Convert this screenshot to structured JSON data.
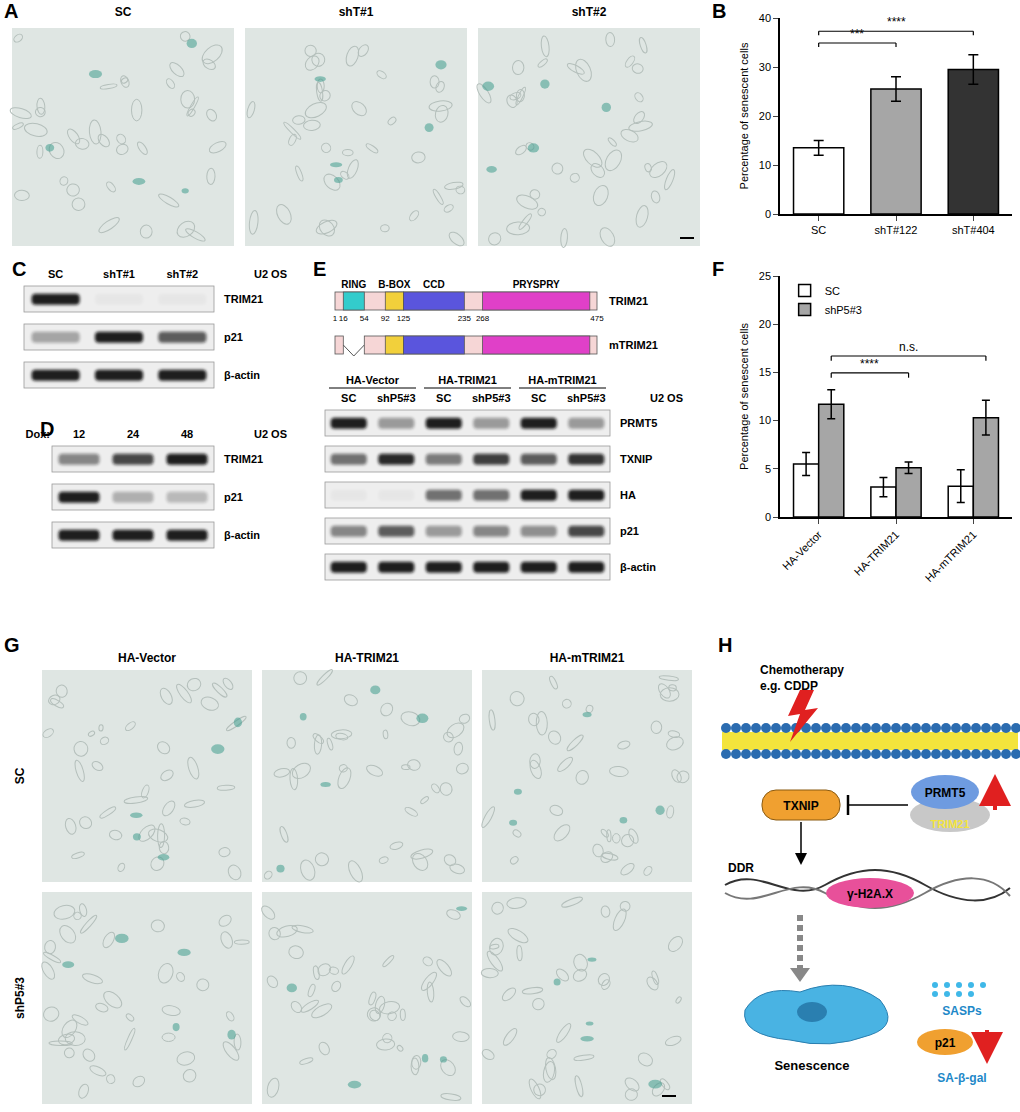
{
  "chart_data": [
    {
      "panel": "B",
      "type": "bar",
      "categories": [
        "SC",
        "shT#122",
        "shT#404"
      ],
      "values": [
        13.5,
        25.5,
        29.5
      ],
      "errors": [
        1.5,
        2.5,
        3.0
      ],
      "colors": [
        "#ffffff",
        "#a6a6a6",
        "#333333"
      ],
      "y_label": "Percentage of senescent cells",
      "ylim": [
        0,
        40
      ],
      "yticks": [
        0,
        10,
        20,
        30,
        40
      ],
      "grid": false,
      "significance": [
        {
          "from": "SC",
          "to": "shT#122",
          "label": "***"
        },
        {
          "from": "SC",
          "to": "shT#404",
          "label": "****"
        }
      ]
    },
    {
      "panel": "F",
      "type": "bar",
      "categories": [
        "HA-Vector",
        "HA-TRIM21",
        "HA-mTRIM21"
      ],
      "series": [
        {
          "name": "SC",
          "color": "#ffffff",
          "values": [
            5.5,
            3.1,
            3.2
          ],
          "errors": [
            1.2,
            1.0,
            1.7
          ]
        },
        {
          "name": "shP5#3",
          "color": "#a6a6a6",
          "values": [
            11.7,
            5.1,
            10.3
          ],
          "errors": [
            1.5,
            0.6,
            1.8
          ]
        }
      ],
      "y_label": "Percentage of senescent cells",
      "ylim": [
        0,
        25
      ],
      "yticks": [
        0,
        5,
        10,
        15,
        20,
        25
      ],
      "grid": false,
      "legend": "top-left",
      "significance": [
        {
          "series": "shP5#3",
          "from": "HA-Vector",
          "to": "HA-TRIM21",
          "label": "****"
        },
        {
          "series": "shP5#3",
          "from": "HA-Vector",
          "to": "HA-mTRIM21",
          "label": "n.s."
        }
      ]
    }
  ],
  "image_panels": [
    {
      "panel": "A",
      "columns": [
        "SC",
        "shT#1",
        "shT#2"
      ]
    },
    {
      "panel": "G",
      "columns": [
        "HA-Vector",
        "HA-TRIM21",
        "HA-mTRIM21"
      ],
      "rows": [
        "SC",
        "shP5#3"
      ]
    }
  ],
  "blots": [
    {
      "panel": "C",
      "cell_line": "U2 OS",
      "lanes": [
        "SC",
        "shT#1",
        "shT#2"
      ],
      "rows": [
        {
          "label": "TRIM21",
          "intensity": [
            1,
            0.03,
            0.03
          ]
        },
        {
          "label": "p21",
          "intensity": [
            0.35,
            1,
            0.7
          ]
        },
        {
          "label": "β-actin",
          "intensity": [
            1,
            1,
            1
          ]
        }
      ]
    },
    {
      "panel": "D",
      "cell_line": "U2 OS",
      "lane_title": "Dox:",
      "lanes": [
        "12",
        "24",
        "48"
      ],
      "rows": [
        {
          "label": "TRIM21",
          "intensity": [
            0.5,
            0.8,
            1
          ]
        },
        {
          "label": "p21",
          "intensity": [
            1,
            0.3,
            0.25
          ]
        },
        {
          "label": "β-actin",
          "intensity": [
            1,
            1,
            1
          ]
        }
      ]
    },
    {
      "cell_line": "U2 OS",
      "groups": [
        {
          "label": "HA-Vector",
          "lanes": [
            "SC",
            "shP5#3"
          ]
        },
        {
          "label": "HA-TRIM21",
          "lanes": [
            "SC",
            "shP5#3"
          ]
        },
        {
          "label": "HA-mTRIM21",
          "lanes": [
            "SC",
            "shP5#3"
          ]
        }
      ],
      "rows": [
        {
          "label": "PRMT5",
          "intensity": [
            1,
            0.4,
            1,
            0.4,
            1,
            0.4
          ]
        },
        {
          "label": "TXNIP",
          "intensity": [
            0.6,
            0.95,
            0.55,
            0.85,
            0.7,
            0.9
          ]
        },
        {
          "label": "HA",
          "intensity": [
            0.03,
            0.03,
            0.6,
            0.6,
            1,
            1
          ]
        },
        {
          "label": "p21",
          "intensity": [
            0.5,
            0.7,
            0.4,
            0.5,
            0.45,
            0.8
          ]
        },
        {
          "label": "β-actin",
          "intensity": [
            1,
            1,
            1,
            1,
            1,
            1
          ]
        }
      ]
    }
  ],
  "domain_diagram": {
    "panel": "E",
    "length": 475,
    "proteins": [
      "TRIM21",
      "mTRIM21"
    ],
    "regions": [
      {
        "label": "RING",
        "start": 16,
        "end": 54,
        "color": "#33cccc"
      },
      {
        "label": "B-BOX",
        "start": 92,
        "end": 125,
        "color": "#f2d03b"
      },
      {
        "label": "CCD",
        "start": 125,
        "end": 235,
        "color": "#5a55dd"
      },
      {
        "label": "PRYSPRY",
        "start": 268,
        "end": 462,
        "color": "#e040c8"
      }
    ],
    "ticks": [
      1,
      16,
      54,
      92,
      125,
      235,
      268,
      475
    ],
    "deleted_in_mutant": "RING"
  },
  "schematic": {
    "panel": "H",
    "stimulus": "Chemotherapy",
    "stimulus_example": "e.g. CDDP",
    "txnip": "TXNIP",
    "prmt5": "PRMT5",
    "trim21": "TRIM21",
    "ddr": "DDR",
    "h2ax": "γ-H2A.X",
    "senescence": "Senescence",
    "sasps": "SASPs",
    "p21": "p21",
    "sa_beta_gal": "SA-β-gal"
  }
}
